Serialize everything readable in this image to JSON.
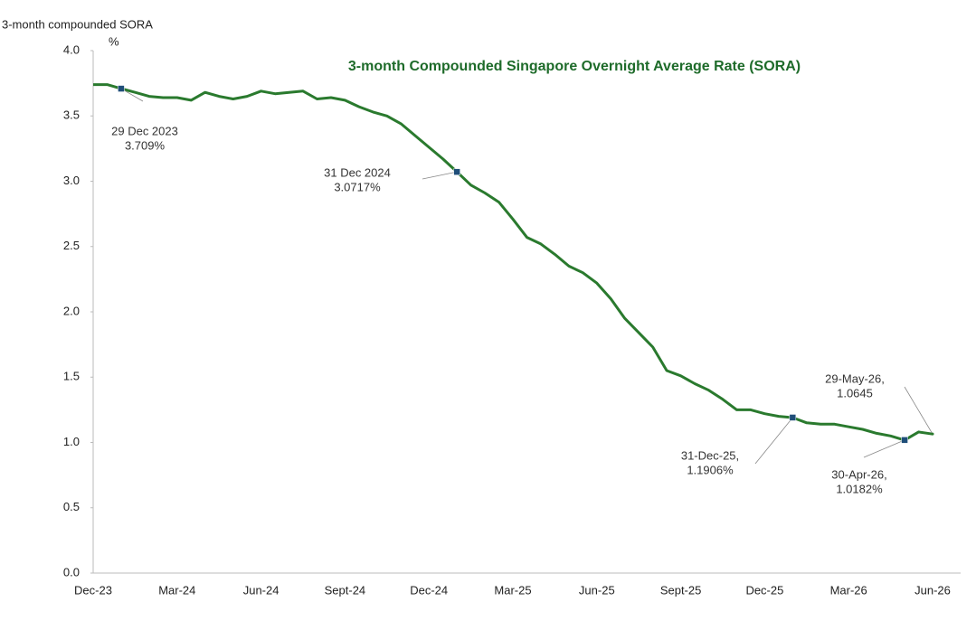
{
  "chart_data": {
    "type": "line",
    "title": "3-month Compounded Singapore Overnight Average Rate (SORA)",
    "y_axis_title": "3-month compounded SORA",
    "y_unit": "%",
    "categories": [
      "Dec-23",
      null,
      null,
      null,
      null,
      null,
      "Mar-24",
      null,
      null,
      null,
      null,
      null,
      "Jun-24",
      null,
      null,
      null,
      null,
      null,
      "Sept-24",
      null,
      null,
      null,
      null,
      null,
      "Dec-24",
      null,
      null,
      null,
      null,
      null,
      "Mar-25",
      null,
      null,
      null,
      null,
      null,
      "Jun-25",
      null,
      null,
      null,
      null,
      null,
      "Sept-25",
      null,
      null,
      null,
      null,
      null,
      "Dec-25",
      null,
      null,
      null,
      null,
      null,
      "Mar-26",
      null,
      null,
      null,
      null,
      null,
      "Jun-26"
    ],
    "series": [
      {
        "name": "3-month compounded SORA",
        "color": "#2a7a2e",
        "values": [
          3.74,
          3.74,
          3.709,
          3.68,
          3.65,
          3.64,
          3.64,
          3.62,
          3.68,
          3.65,
          3.63,
          3.65,
          3.69,
          3.67,
          3.68,
          3.69,
          3.63,
          3.64,
          3.62,
          3.57,
          3.53,
          3.5,
          3.44,
          3.35,
          3.26,
          3.17,
          3.0717,
          2.97,
          2.91,
          2.84,
          2.71,
          2.57,
          2.52,
          2.44,
          2.35,
          2.3,
          2.22,
          2.1,
          1.95,
          1.84,
          1.73,
          1.55,
          1.51,
          1.45,
          1.4,
          1.33,
          1.25,
          1.25,
          1.22,
          1.2,
          1.1906,
          1.15,
          1.14,
          1.14,
          1.12,
          1.1,
          1.07,
          1.05,
          1.0182,
          1.08,
          1.0645
        ]
      }
    ],
    "annotations": [
      {
        "label": "29 Dec 2023",
        "value": 3.709,
        "value_label": "3.709%"
      },
      {
        "label": "31 Dec 2024",
        "value": 3.0717,
        "value_label": "3.0717%"
      },
      {
        "label": "31-Dec-25,",
        "value": 1.1906,
        "value_label": "1.1906%"
      },
      {
        "label": "30-Apr-26,",
        "value": 1.0182,
        "value_label": "1.0182%"
      },
      {
        "label": "29-May-26,",
        "value": 1.0645,
        "value_label": "1.0645"
      }
    ],
    "marker_color": "#1f4e79",
    "ylim": [
      0,
      4
    ],
    "yticks": [
      {
        "value": 0,
        "label": "0.0"
      },
      0.5,
      {
        "value": 1,
        "label": "1.0"
      },
      1.5,
      {
        "value": 2,
        "label": "2.0"
      },
      2.5,
      {
        "value": 3,
        "label": "3.0"
      },
      3.5,
      {
        "value": 4,
        "label": "4.0"
      }
    ],
    "grid": false
  }
}
